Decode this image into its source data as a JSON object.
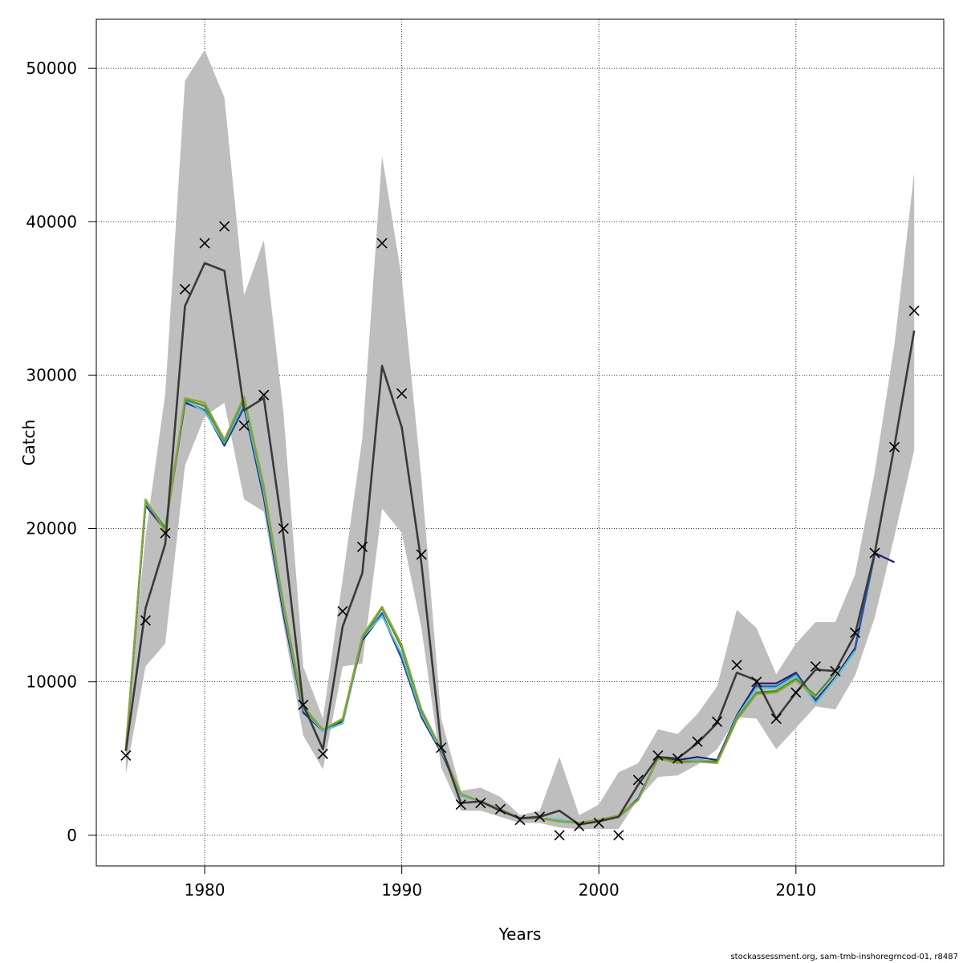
{
  "chart_data": {
    "type": "line",
    "xlabel": "Years",
    "ylabel": "Catch",
    "xlim": [
      1974.5,
      2017.5
    ],
    "ylim": [
      -2000,
      53200
    ],
    "xticks": [
      1980,
      1990,
      2000,
      2010
    ],
    "yticks": [
      0,
      10000,
      20000,
      30000,
      40000,
      50000
    ],
    "grid": true,
    "colors": {
      "band": "#bebebe",
      "fit": "#3a3a3a",
      "observed": "#000000",
      "grid": "#000000",
      "retro": [
        "#2a1a6e",
        "#1f5fb0",
        "#5bc4d4",
        "#4a8a2a",
        "#8aa830"
      ]
    },
    "years": [
      1976,
      1977,
      1978,
      1979,
      1980,
      1981,
      1982,
      1983,
      1984,
      1985,
      1986,
      1987,
      1988,
      1989,
      1990,
      1991,
      1992,
      1993,
      1994,
      1995,
      1996,
      1997,
      1998,
      1999,
      2000,
      2001,
      2002,
      2003,
      2004,
      2005,
      2006,
      2007,
      2008,
      2009,
      2010,
      2011,
      2012,
      2013,
      2014,
      2015,
      2016
    ],
    "observed": [
      5200,
      14000,
      19700,
      35600,
      38600,
      39700,
      26700,
      28700,
      20000,
      8500,
      5300,
      14600,
      18800,
      38600,
      28800,
      18300,
      5700,
      2000,
      2100,
      1700,
      1000,
      1200,
      0,
      600,
      800,
      0,
      3600,
      5200,
      5000,
      6100,
      7400,
      11100,
      10000,
      7600,
      9300,
      11000,
      10700,
      13200,
      18400,
      25300,
      34200
    ],
    "fit": [
      5500,
      14800,
      19000,
      34500,
      37300,
      36800,
      27700,
      28500,
      19500,
      8500,
      5600,
      13600,
      17100,
      30600,
      26600,
      17700,
      5800,
      2100,
      2200,
      1600,
      1100,
      1200,
      1600,
      700,
      900,
      1200,
      3300,
      5100,
      5000,
      6000,
      7300,
      10600,
      10100,
      7600,
      9300,
      10800,
      10700,
      13100,
      18400,
      25400,
      32900
    ],
    "band_upper": [
      6500,
      19500,
      28800,
      49200,
      51200,
      48100,
      35200,
      38800,
      27500,
      11000,
      7600,
      16700,
      25900,
      44300,
      36300,
      23200,
      7600,
      2900,
      3100,
      2500,
      1300,
      1600,
      5100,
      1300,
      2000,
      4100,
      4700,
      6900,
      6600,
      7900,
      9700,
      14700,
      13500,
      10500,
      12500,
      13900,
      13900,
      17000,
      23700,
      32000,
      43200
    ],
    "band_lower": [
      4000,
      11000,
      12500,
      24100,
      27300,
      28200,
      21900,
      21100,
      13700,
      6500,
      4300,
      11000,
      11200,
      21300,
      19700,
      13500,
      4400,
      1600,
      1600,
      1200,
      800,
      800,
      500,
      400,
      400,
      400,
      2400,
      3800,
      3900,
      4600,
      5600,
      7700,
      7600,
      5600,
      7000,
      8400,
      8200,
      10400,
      14200,
      19500,
      25100
    ],
    "series": [
      {
        "end": 2015,
        "values": [
          5500,
          21500,
          19900,
          28200,
          27700,
          25400,
          27900,
          22000,
          14400,
          8000,
          6800,
          7400,
          12700,
          14400,
          11500,
          7700,
          5400,
          2600,
          2200,
          1600,
          1100,
          1100,
          1000,
          800,
          1000,
          1200,
          2400,
          5000,
          4900,
          5100,
          4900,
          7800,
          9900,
          9900,
          10600,
          8800,
          10300,
          12200,
          18400,
          17800
        ]
      },
      {
        "end": 2014,
        "values": [
          5500,
          21600,
          20000,
          28300,
          27700,
          25500,
          28000,
          22200,
          14600,
          8100,
          6800,
          7300,
          12800,
          14500,
          11600,
          7800,
          5500,
          2600,
          2200,
          1600,
          1100,
          1100,
          1000,
          800,
          1000,
          1200,
          2400,
          5000,
          4800,
          4900,
          4800,
          7700,
          9700,
          9700,
          10500,
          8700,
          10200,
          12100,
          18300
        ]
      },
      {
        "end": 2013,
        "values": [
          5600,
          21700,
          20100,
          28400,
          27600,
          25600,
          28200,
          22400,
          14800,
          8200,
          6800,
          7300,
          12900,
          14300,
          11800,
          7900,
          5500,
          2600,
          2200,
          1600,
          1100,
          1100,
          1000,
          800,
          1000,
          1200,
          2300,
          5000,
          4800,
          4900,
          4800,
          7700,
          9600,
          9600,
          10400,
          8600,
          10200,
          12000
        ]
      },
      {
        "end": 2012,
        "values": [
          5600,
          21800,
          20000,
          28400,
          28000,
          25700,
          28500,
          22700,
          15000,
          8300,
          6900,
          7500,
          12900,
          14800,
          12200,
          8100,
          5600,
          2700,
          2200,
          1700,
          1100,
          1100,
          900,
          800,
          1000,
          1200,
          2300,
          5000,
          4800,
          4800,
          4800,
          7600,
          9300,
          9400,
          10200,
          9100,
          10600
        ]
      },
      {
        "end": 2011,
        "values": [
          5700,
          21900,
          19800,
          28500,
          28200,
          25800,
          28600,
          22800,
          15100,
          8400,
          6900,
          7600,
          13000,
          14900,
          12400,
          8200,
          5600,
          2700,
          2200,
          1700,
          1100,
          1100,
          900,
          800,
          1000,
          1300,
          2300,
          5000,
          4700,
          4800,
          4700,
          7500,
          9200,
          9300,
          10100,
          9000
        ]
      }
    ]
  },
  "footer": "stockassessment.org, sam-tmb-inshoregrncod-01, r8487"
}
